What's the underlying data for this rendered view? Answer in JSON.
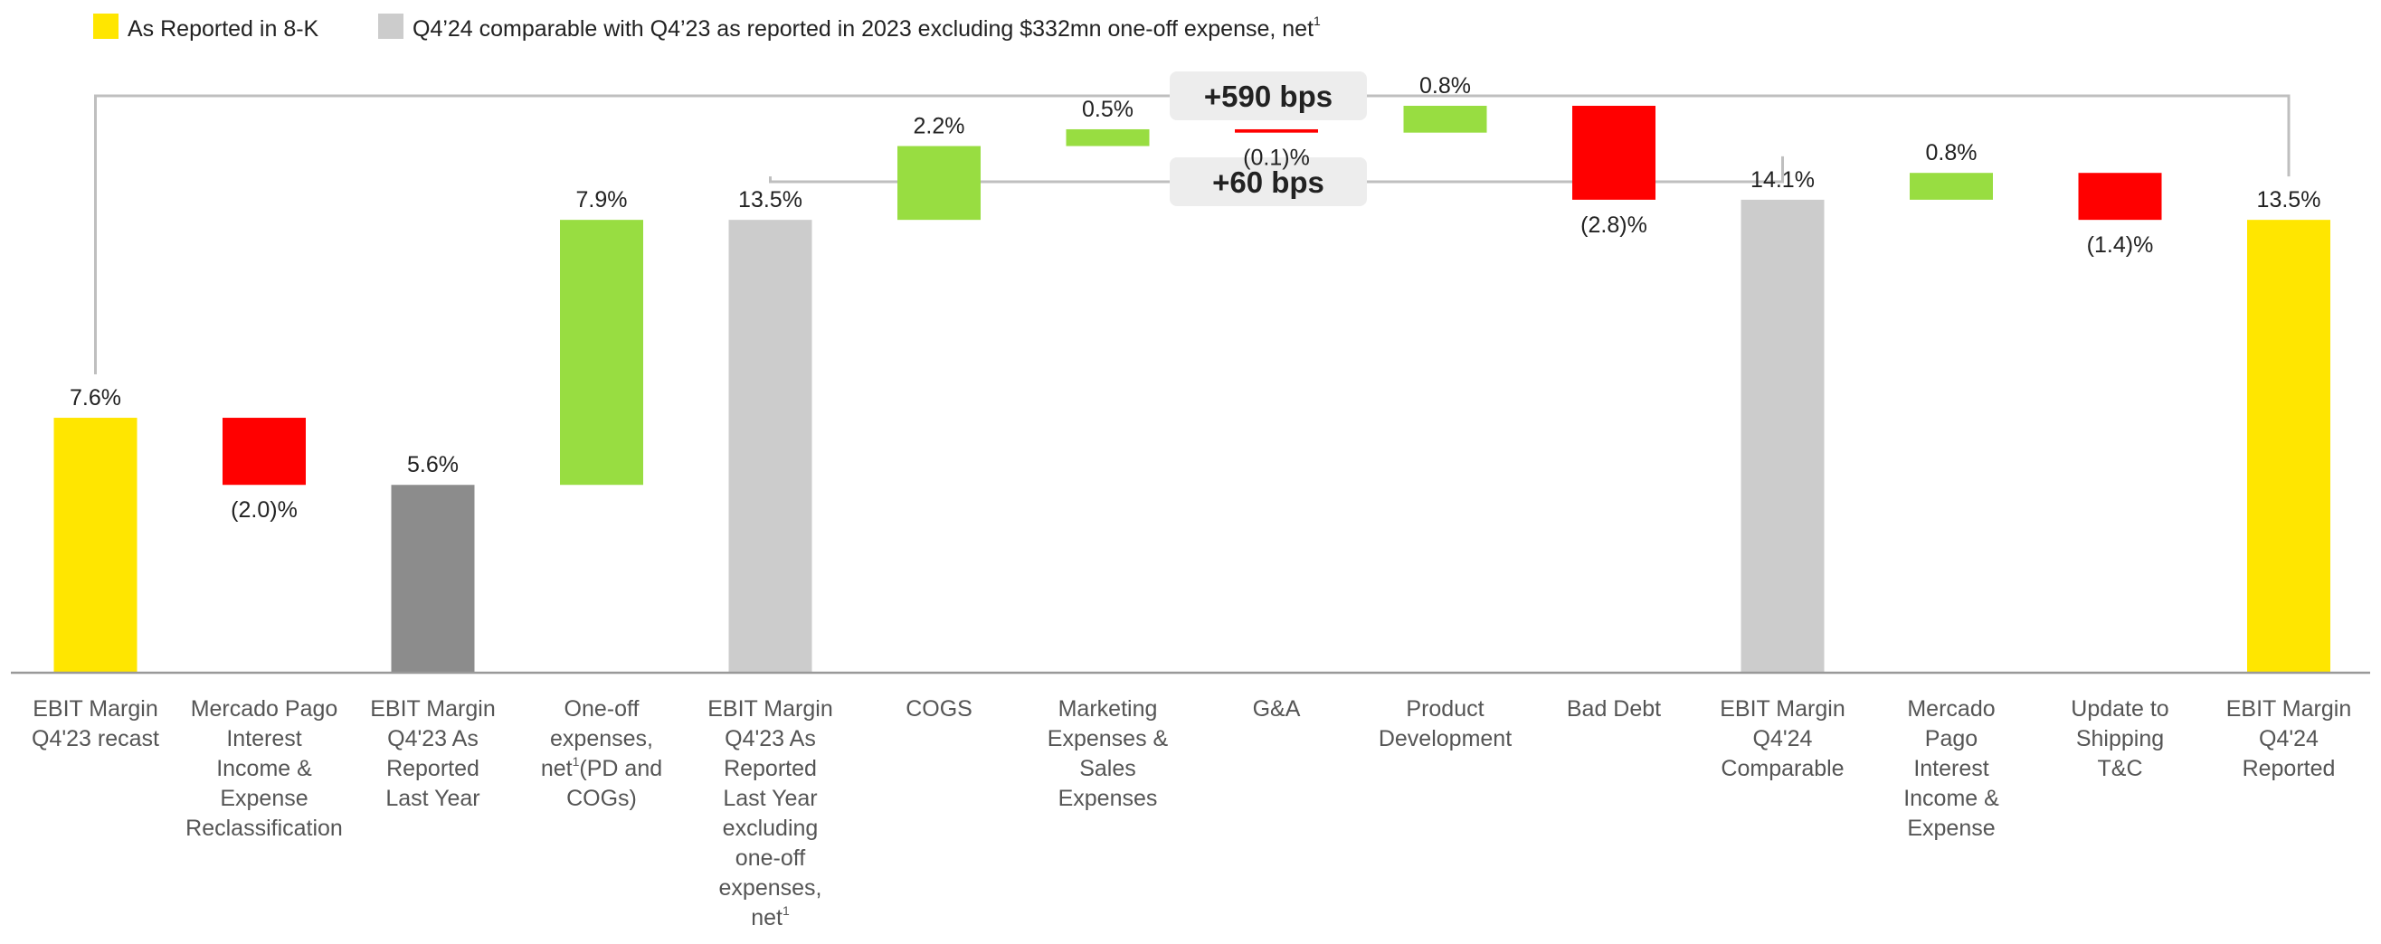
{
  "legend": {
    "reported": {
      "label": "As Reported in 8-K",
      "color": "#FFE600"
    },
    "comparable": {
      "label": "Q4’24 comparable with Q4’23 as reported in 2023 excluding $332mn one-off expense, net",
      "sup": "1",
      "color": "#CCCCCC"
    }
  },
  "brackets": [
    {
      "label": "+590 bps",
      "from": 0,
      "to": 13
    },
    {
      "label": "+60 bps",
      "from": 4,
      "to": 10
    }
  ],
  "colors": {
    "yellow": "#FFE600",
    "dark_gray": "#8C8C8C",
    "light_gray": "#CCCCCC",
    "green": "#98DD41",
    "red": "#FF0000",
    "bracket": "#BFBFBF",
    "axis": "#999999"
  },
  "chart_data": {
    "type": "waterfall",
    "unit": "%",
    "ylim": [
      0,
      20
    ],
    "bars": [
      {
        "category_lines": [
          "EBIT Margin",
          "Q4'23 recast"
        ],
        "kind": "total",
        "value": 7.6,
        "label": "7.6%",
        "color_key": "yellow"
      },
      {
        "category_lines": [
          "Mercado Pago",
          "Interest",
          "Income &",
          "Expense",
          "Reclassification"
        ],
        "kind": "delta",
        "value": -2.0,
        "label": "(2.0)%",
        "color_key": "red"
      },
      {
        "category_lines": [
          "EBIT Margin",
          "Q4'23 As",
          "Reported",
          "Last Year"
        ],
        "kind": "total",
        "value": 5.6,
        "label": "5.6%",
        "color_key": "dark_gray"
      },
      {
        "category_lines": [
          "One-off",
          "expenses,",
          "net(PD and",
          "COGs)"
        ],
        "sup_line": 2,
        "sup_after": "net",
        "sup_text": "1",
        "kind": "delta",
        "value": 7.9,
        "label": "7.9%",
        "color_key": "green"
      },
      {
        "category_lines": [
          "EBIT Margin",
          "Q4'23 As",
          "Reported",
          "Last Year",
          "excluding",
          "one-off",
          "expenses,",
          "net"
        ],
        "sup_line": 7,
        "sup_after": "net",
        "sup_text": "1",
        "kind": "total",
        "value": 13.5,
        "label": "13.5%",
        "color_key": "light_gray"
      },
      {
        "category_lines": [
          "COGS"
        ],
        "kind": "delta",
        "value": 2.2,
        "label": "2.2%",
        "color_key": "green"
      },
      {
        "category_lines": [
          "Marketing",
          "Expenses &",
          "Sales",
          "Expenses"
        ],
        "kind": "delta",
        "value": 0.5,
        "label": "0.5%",
        "color_key": "green"
      },
      {
        "category_lines": [
          "G&A"
        ],
        "kind": "delta",
        "value": -0.1,
        "label": "(0.1)%",
        "color_key": "red"
      },
      {
        "category_lines": [
          "Product",
          "Development"
        ],
        "kind": "delta",
        "value": 0.8,
        "label": "0.8%",
        "color_key": "green"
      },
      {
        "category_lines": [
          "Bad Debt"
        ],
        "kind": "delta",
        "value": -2.8,
        "label": "(2.8)%",
        "color_key": "red"
      },
      {
        "category_lines": [
          "EBIT Margin",
          "Q4'24",
          "Comparable"
        ],
        "kind": "total",
        "value": 14.1,
        "label": "14.1%",
        "color_key": "light_gray"
      },
      {
        "category_lines": [
          "Mercado",
          "Pago",
          "Interest",
          "Income &",
          "Expense"
        ],
        "kind": "delta",
        "value": 0.8,
        "label": "0.8%",
        "color_key": "green"
      },
      {
        "category_lines": [
          "Update to",
          "Shipping",
          "T&C"
        ],
        "kind": "delta",
        "value": -1.4,
        "label": "(1.4)%",
        "color_key": "red"
      },
      {
        "category_lines": [
          "EBIT Margin",
          "Q4'24",
          "Reported"
        ],
        "kind": "total",
        "value": 13.5,
        "label": "13.5%",
        "color_key": "yellow"
      }
    ]
  }
}
